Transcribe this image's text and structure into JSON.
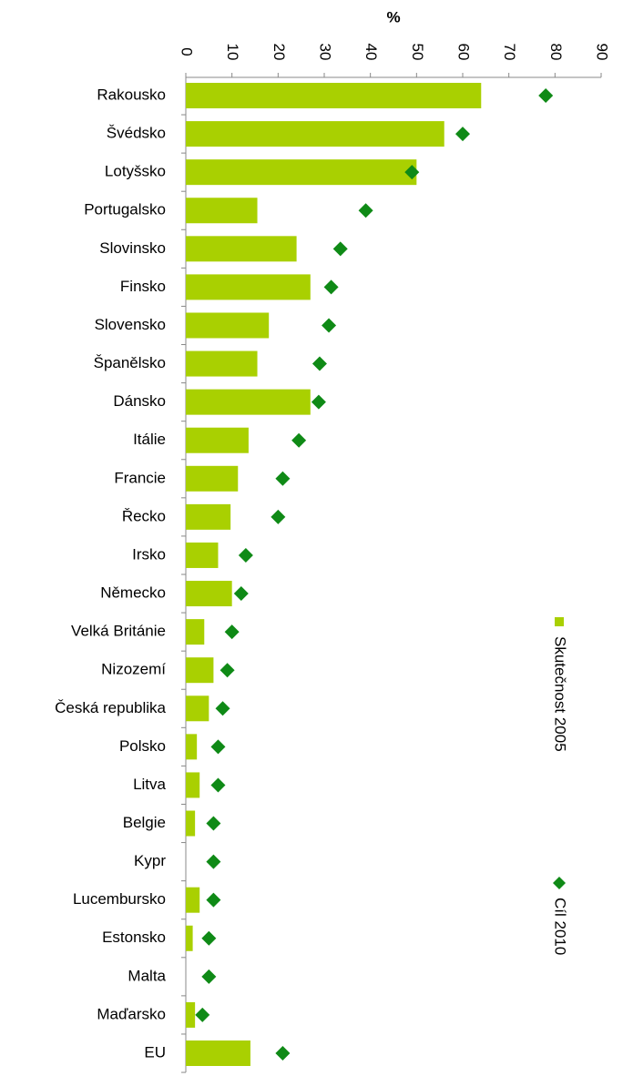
{
  "chart_data": {
    "type": "bar",
    "orientation": "horizontal",
    "xlabel": "%",
    "categories": [
      "Rakousko",
      "Švédsko",
      "Lotyšsko",
      "Portugalsko",
      "Slovinsko",
      "Finsko",
      "Slovensko",
      "Španělsko",
      "Dánsko",
      "Itálie",
      "Francie",
      "Řecko",
      "Irsko",
      "Německo",
      "Velká Británie",
      "Nizozemí",
      "Česká republika",
      "Polsko",
      "Litva",
      "Belgie",
      "Kypr",
      "Lucembursko",
      "Estonsko",
      "Malta",
      "Maďarsko",
      "EU"
    ],
    "series": [
      {
        "name": "Skutečnost 2005",
        "color": "#a9d001",
        "marker": "bar",
        "values": [
          64,
          56,
          50,
          15.5,
          24,
          27,
          18,
          15.5,
          27,
          13.6,
          11.3,
          9.7,
          7,
          10,
          4,
          6,
          5,
          2.4,
          3,
          2,
          null,
          3,
          1.5,
          null,
          2,
          14
        ]
      },
      {
        "name": "Cíl 2010",
        "color": "#0f8a16",
        "marker": "diamond",
        "values": [
          78,
          60,
          49,
          39,
          33.5,
          31.5,
          31,
          29,
          28.8,
          24.5,
          21,
          20,
          13,
          12,
          10,
          9,
          8,
          7,
          7,
          6,
          6,
          6,
          5,
          5,
          3.6,
          21
        ]
      }
    ],
    "xlim": [
      0,
      90
    ],
    "xticks": [
      0,
      10,
      20,
      30,
      40,
      50,
      60,
      70,
      80,
      90
    ],
    "grid": false
  }
}
